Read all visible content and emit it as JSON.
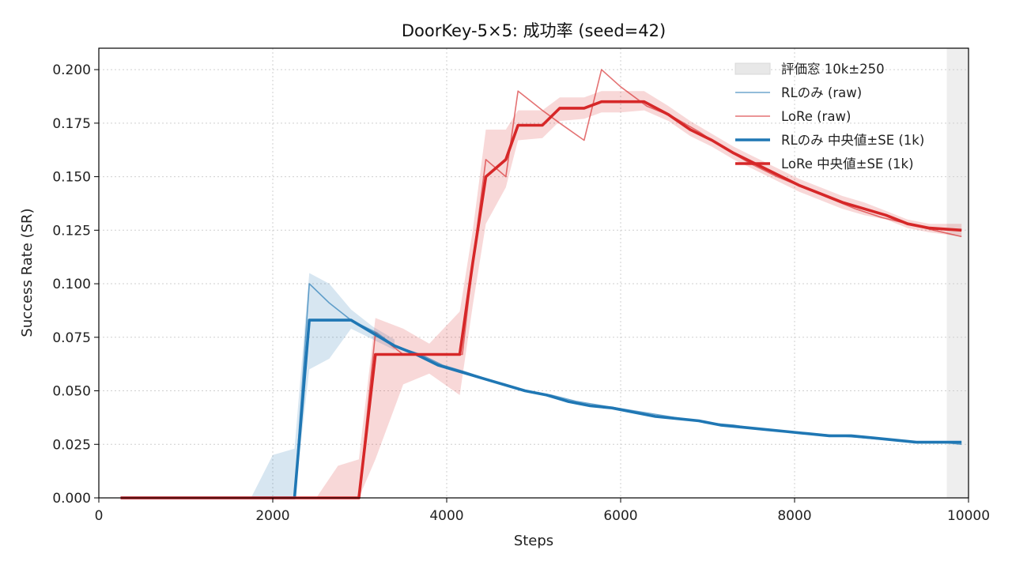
{
  "chart_data": {
    "type": "line",
    "title": "DoorKey-5×5: 成功率 (seed=42)",
    "xlabel": "Steps",
    "ylabel": "Success Rate (SR)",
    "xlim": [
      0,
      10000
    ],
    "ylim": [
      0,
      0.21
    ],
    "xticks": [
      0,
      2000,
      4000,
      6000,
      8000,
      10000
    ],
    "yticks": [
      0.0,
      0.025,
      0.05,
      0.075,
      0.1,
      0.125,
      0.15,
      0.175,
      0.2
    ],
    "xtick_labels": [
      "0",
      "2000",
      "4000",
      "6000",
      "8000",
      "10000"
    ],
    "ytick_labels": [
      "0.000",
      "0.025",
      "0.050",
      "0.075",
      "0.100",
      "0.125",
      "0.150",
      "0.175",
      "0.200"
    ],
    "grid": true,
    "legend_position": "top-right",
    "eval_window": {
      "label": "評価窓 10k±250",
      "x0": 9750,
      "x1": 10000,
      "color": "#e8e8e8"
    },
    "series": [
      {
        "name": "RLのみ (raw)",
        "color": "#1f77b4",
        "style": "raw",
        "x": [
          250,
          2250,
          2420,
          2650,
          2900,
          3200,
          3400,
          3700,
          3950,
          4200,
          4500,
          4900,
          5200,
          5500,
          5800,
          6100,
          6400,
          6700,
          7000,
          7300,
          7600,
          7900,
          8200,
          8500,
          8800,
          9100,
          9400,
          9700,
          9920
        ],
        "y": [
          0.0,
          0.0,
          0.1,
          0.091,
          0.083,
          0.077,
          0.071,
          0.067,
          0.062,
          0.059,
          0.055,
          0.05,
          0.048,
          0.045,
          0.043,
          0.041,
          0.039,
          0.037,
          0.035,
          0.034,
          0.032,
          0.031,
          0.03,
          0.029,
          0.028,
          0.027,
          0.026,
          0.026,
          0.025
        ]
      },
      {
        "name": "LoRe (raw)",
        "color": "#d62728",
        "style": "raw",
        "x": [
          250,
          2990,
          3180,
          3500,
          3800,
          4180,
          4300,
          4450,
          4680,
          4820,
          5100,
          5300,
          5580,
          5780,
          6000,
          6300,
          6600,
          6900,
          7200,
          7500,
          7800,
          8100,
          8400,
          8700,
          9000,
          9300,
          9600,
          9920
        ],
        "y": [
          0.0,
          0.0,
          0.077,
          0.067,
          0.067,
          0.067,
          0.11,
          0.158,
          0.15,
          0.19,
          0.181,
          0.175,
          0.167,
          0.2,
          0.192,
          0.183,
          0.178,
          0.171,
          0.163,
          0.156,
          0.15,
          0.145,
          0.14,
          0.135,
          0.131,
          0.128,
          0.125,
          0.122
        ]
      },
      {
        "name": "RLのみ 中央値±SE (1k)",
        "color": "#1f77b4",
        "style": "median",
        "x": [
          250,
          2250,
          2420,
          2650,
          2900,
          3150,
          3400,
          3650,
          3900,
          4150,
          4400,
          4650,
          4900,
          5150,
          5400,
          5650,
          5900,
          6150,
          6400,
          6650,
          6900,
          7150,
          7400,
          7650,
          7900,
          8150,
          8400,
          8650,
          8900,
          9150,
          9400,
          9650,
          9920
        ],
        "y": [
          0.0,
          0.0,
          0.083,
          0.083,
          0.083,
          0.077,
          0.071,
          0.067,
          0.062,
          0.059,
          0.056,
          0.053,
          0.05,
          0.048,
          0.045,
          0.043,
          0.042,
          0.04,
          0.038,
          0.037,
          0.036,
          0.034,
          0.033,
          0.032,
          0.031,
          0.03,
          0.029,
          0.029,
          0.028,
          0.027,
          0.026,
          0.026,
          0.026
        ],
        "lower": [
          0.0,
          0.0,
          0.06,
          0.065,
          0.079,
          0.074,
          0.069,
          0.065,
          0.06,
          0.057,
          0.054,
          0.051,
          0.049,
          0.047,
          0.044,
          0.042,
          0.041,
          0.039,
          0.037,
          0.036,
          0.035,
          0.033,
          0.032,
          0.031,
          0.03,
          0.029,
          0.028,
          0.028,
          0.027,
          0.026,
          0.025,
          0.025,
          0.025
        ],
        "upper": [
          0.0,
          0.0,
          0.105,
          0.1,
          0.088,
          0.08,
          0.074,
          0.069,
          0.064,
          0.061,
          0.058,
          0.055,
          0.052,
          0.05,
          0.047,
          0.045,
          0.043,
          0.041,
          0.039,
          0.038,
          0.037,
          0.035,
          0.034,
          0.033,
          0.032,
          0.031,
          0.03,
          0.03,
          0.029,
          0.028,
          0.027,
          0.027,
          0.027
        ],
        "band": {
          "x": [
            1750,
            2000,
            2250,
            2420,
            2650,
            2900,
            3150,
            3400
          ],
          "lower": [
            0.0,
            0.0,
            0.0,
            0.06,
            0.065,
            0.079,
            0.074,
            0.069
          ],
          "upper": [
            0.0,
            0.02,
            0.023,
            0.105,
            0.1,
            0.088,
            0.08,
            0.074
          ]
        }
      },
      {
        "name": "LoRe 中央値±SE (1k)",
        "color": "#d62728",
        "style": "median",
        "x": [
          250,
          2990,
          3180,
          3500,
          3800,
          4150,
          4300,
          4450,
          4680,
          4820,
          5100,
          5300,
          5580,
          5780,
          6000,
          6270,
          6550,
          6800,
          7050,
          7300,
          7550,
          7800,
          8050,
          8300,
          8550,
          8800,
          9050,
          9300,
          9550,
          9920
        ],
        "y": [
          0.0,
          0.0,
          0.067,
          0.067,
          0.067,
          0.067,
          0.11,
          0.15,
          0.158,
          0.174,
          0.174,
          0.182,
          0.182,
          0.185,
          0.185,
          0.185,
          0.179,
          0.172,
          0.167,
          0.161,
          0.156,
          0.151,
          0.146,
          0.142,
          0.138,
          0.135,
          0.132,
          0.128,
          0.126,
          0.125
        ],
        "lower": [
          0.0,
          0.0,
          0.018,
          0.053,
          0.058,
          0.048,
          0.09,
          0.128,
          0.145,
          0.167,
          0.168,
          0.176,
          0.177,
          0.18,
          0.18,
          0.181,
          0.176,
          0.169,
          0.164,
          0.158,
          0.153,
          0.148,
          0.143,
          0.139,
          0.135,
          0.132,
          0.13,
          0.126,
          0.124,
          0.122
        ],
        "upper": [
          0.0,
          0.0,
          0.084,
          0.079,
          0.072,
          0.087,
          0.125,
          0.172,
          0.172,
          0.181,
          0.181,
          0.187,
          0.187,
          0.19,
          0.19,
          0.19,
          0.183,
          0.176,
          0.17,
          0.164,
          0.159,
          0.154,
          0.149,
          0.145,
          0.141,
          0.138,
          0.134,
          0.13,
          0.128,
          0.128
        ],
        "band": {
          "x": [
            2500,
            2750,
            2990,
            3180,
            3500,
            3800,
            4150,
            4300,
            4450,
            4680,
            4820,
            5100,
            5300,
            5580,
            5780,
            6000,
            6270,
            6550,
            6800,
            7050,
            7300,
            7550,
            7800,
            8050,
            8300,
            8550,
            8800,
            9050,
            9300,
            9550,
            9920
          ],
          "lower": [
            0.0,
            0.0,
            0.0,
            0.018,
            0.053,
            0.058,
            0.048,
            0.09,
            0.128,
            0.145,
            0.167,
            0.168,
            0.176,
            0.177,
            0.18,
            0.18,
            0.181,
            0.176,
            0.169,
            0.164,
            0.158,
            0.153,
            0.148,
            0.143,
            0.139,
            0.135,
            0.132,
            0.13,
            0.126,
            0.124,
            0.122
          ],
          "upper": [
            0.0,
            0.015,
            0.018,
            0.084,
            0.079,
            0.072,
            0.087,
            0.125,
            0.172,
            0.172,
            0.181,
            0.181,
            0.187,
            0.187,
            0.19,
            0.19,
            0.19,
            0.183,
            0.176,
            0.17,
            0.164,
            0.159,
            0.154,
            0.149,
            0.145,
            0.141,
            0.138,
            0.134,
            0.13,
            0.128,
            0.128
          ]
        }
      }
    ]
  }
}
